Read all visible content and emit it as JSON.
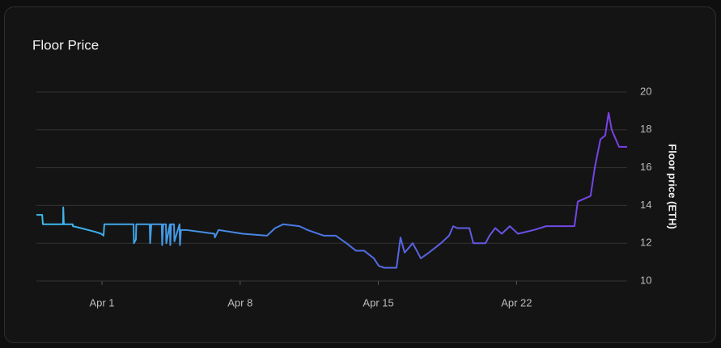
{
  "chart_data": {
    "type": "line",
    "title": "Floor Price",
    "y_label": "Floor price (ETH)",
    "x": [
      -2.32,
      -2.03,
      -1.99,
      -0.97,
      -0.96,
      -0.93,
      -0.92,
      -0.48,
      -0.47,
      -0.07,
      0.67,
      0.96,
      1.08,
      1.12,
      1.16,
      1.98,
      2.6,
      2.62,
      2.72,
      2.74,
      2.8,
      3.42,
      3.44,
      3.5,
      3.52,
      4.03,
      4.05,
      4.1,
      4.24,
      4.26,
      4.44,
      4.46,
      4.5,
      4.65,
      4.67,
      4.93,
      4.95,
      5.0,
      5.26,
      6.7,
      6.72,
      6.9,
      8.13,
      9.36,
      9.77,
      10.18,
      11.0,
      11.41,
      12.23,
      12.84,
      13.38,
      13.87,
      14.28,
      14.77,
      15.02,
      15.3,
      15.92,
      16.12,
      16.33,
      16.74,
      17.15,
      17.56,
      18.17,
      18.58,
      18.79,
      18.99,
      19.61,
      19.81,
      20.43,
      20.63,
      20.92,
      21.25,
      21.66,
      22.07,
      22.88,
      23.5,
      24.93,
      25.1,
      25.75,
      25.96,
      26.25,
      26.49,
      26.66,
      26.82,
      27.19,
      27.6
    ],
    "series": [
      {
        "name": "Floor price (ETH)",
        "values": [
          13.5,
          13.5,
          13.0,
          13.0,
          13.9,
          13.0,
          13.0,
          13.0,
          12.9,
          12.8,
          12.6,
          12.5,
          12.4,
          13.0,
          13.0,
          13.0,
          13.0,
          12.0,
          12.2,
          13.0,
          13.0,
          13.0,
          12.0,
          13.0,
          13.0,
          13.0,
          11.9,
          13.0,
          13.0,
          12.0,
          13.0,
          11.9,
          13.0,
          13.0,
          12.1,
          13.0,
          11.9,
          12.7,
          12.7,
          12.5,
          12.3,
          12.7,
          12.5,
          12.4,
          12.8,
          13.0,
          12.9,
          12.7,
          12.4,
          12.4,
          12.0,
          11.6,
          11.6,
          11.2,
          10.8,
          10.7,
          10.7,
          12.3,
          11.5,
          12.0,
          11.2,
          11.5,
          12.0,
          12.4,
          12.9,
          12.8,
          12.8,
          12.0,
          12.0,
          12.4,
          12.8,
          12.5,
          12.9,
          12.5,
          12.7,
          12.9,
          12.9,
          14.2,
          14.5,
          16.0,
          17.5,
          17.7,
          18.9,
          18.0,
          17.1,
          17.1
        ]
      }
    ],
    "line_colors": [
      "#3cbcec",
      "#4c72e2",
      "#7a3ee8"
    ],
    "xlim": [
      -2.32,
      27.6
    ],
    "xticks": [
      {
        "value": 1,
        "label": "Apr 1"
      },
      {
        "value": 8,
        "label": "Apr 8"
      },
      {
        "value": 15,
        "label": "Apr 15"
      },
      {
        "value": 22,
        "label": "Apr 22"
      }
    ],
    "ylim": [
      10,
      20
    ],
    "yticks": [
      10,
      12,
      14,
      16,
      18,
      20
    ],
    "grid": true
  }
}
